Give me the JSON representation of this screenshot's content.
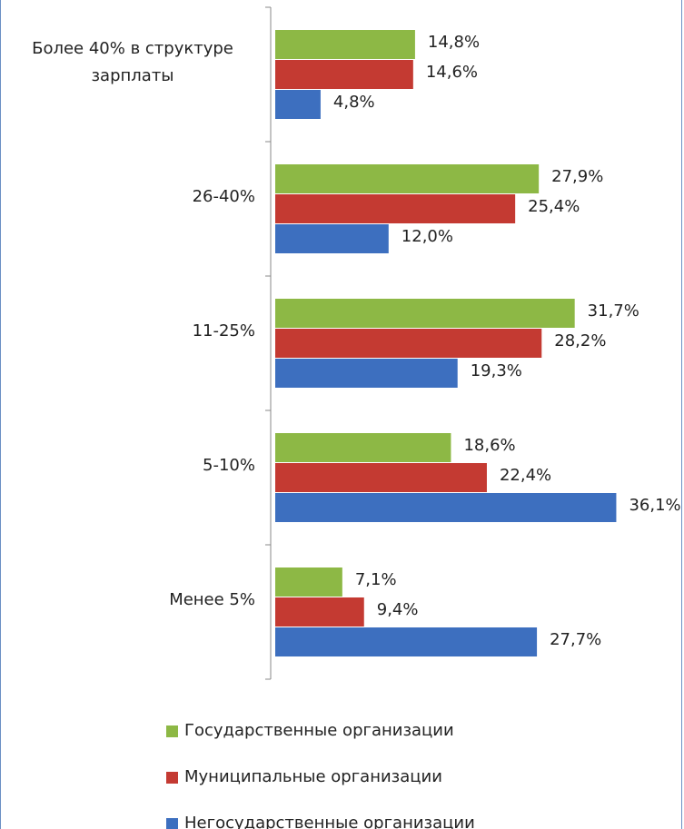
{
  "chart_data": {
    "type": "hbar",
    "categories": [
      "Более 40% в структуре зарплаты",
      "26-40%",
      "11-25%",
      "5-10%",
      "Менее 5%"
    ],
    "xlim": [
      0,
      42.5
    ],
    "series": [
      {
        "name": "Государственные организации",
        "color": "#8db845",
        "values": [
          14.8,
          27.9,
          31.7,
          18.6,
          7.1
        ],
        "value_labels": [
          "14,8%",
          "27,9%",
          "31,7%",
          "18,6%",
          "7,1%"
        ]
      },
      {
        "name": "Муниципальные организации",
        "color": "#c43a32",
        "values": [
          14.6,
          25.4,
          28.2,
          22.4,
          9.4
        ],
        "value_labels": [
          "14,6%",
          "25,4%",
          "28,2%",
          "22,4%",
          "9,4%"
        ]
      },
      {
        "name": "Негосударственные организации",
        "color": "#3d6fbf",
        "values": [
          4.8,
          12,
          19.3,
          36.1,
          27.7
        ],
        "value_labels": [
          "4,8%",
          "12,0%",
          "19,3%",
          "36,1%",
          "27,7%"
        ]
      }
    ]
  }
}
